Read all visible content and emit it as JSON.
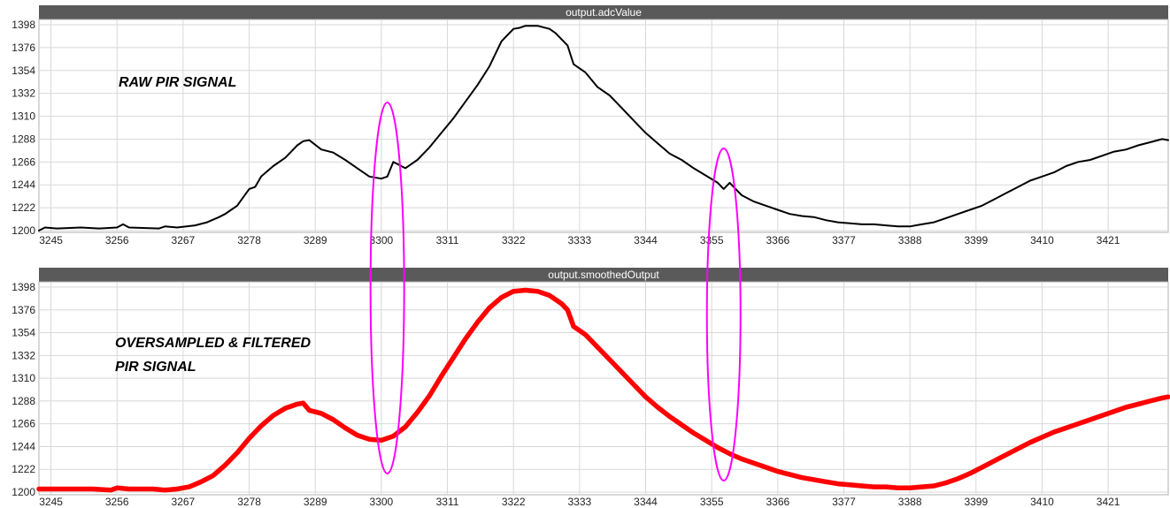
{
  "chart_data": [
    {
      "type": "line",
      "title": "output.adcValue",
      "annotation": "RAW PIR SIGNAL",
      "xlim": [
        3243,
        3431
      ],
      "ylim": [
        1200,
        1398
      ],
      "x_ticks": [
        3245,
        3256,
        3267,
        3278,
        3289,
        3300,
        3311,
        3322,
        3333,
        3344,
        3355,
        3366,
        3377,
        3388,
        3399,
        3410,
        3421
      ],
      "y_ticks": [
        1200,
        1222,
        1244,
        1266,
        1288,
        1310,
        1332,
        1354,
        1376,
        1398
      ],
      "grid": true,
      "series": [
        {
          "color": "#000000",
          "x": [
            3243,
            3244,
            3246,
            3250,
            3253,
            3256,
            3257,
            3258,
            3263,
            3264,
            3266,
            3269,
            3271,
            3273,
            3274,
            3275,
            3276,
            3277,
            3278,
            3279,
            3280,
            3282,
            3284,
            3285,
            3286,
            3287,
            3288,
            3290,
            3292,
            3294,
            3296,
            3298,
            3300,
            3301,
            3302,
            3304,
            3306,
            3308,
            3310,
            3312,
            3314,
            3316,
            3318,
            3319,
            3320,
            3322,
            3323,
            3324,
            3326,
            3328,
            3329,
            3331,
            3332,
            3334,
            3336,
            3338,
            3340,
            3342,
            3344,
            3346,
            3348,
            3350,
            3352,
            3354,
            3356,
            3357,
            3358,
            3360,
            3362,
            3364,
            3366,
            3368,
            3370,
            3372,
            3374,
            3376,
            3378,
            3380,
            3382,
            3384,
            3386,
            3388,
            3390,
            3392,
            3394,
            3396,
            3398,
            3400,
            3402,
            3404,
            3406,
            3408,
            3410,
            3412,
            3414,
            3416,
            3418,
            3420,
            3422,
            3424,
            3426,
            3428,
            3430,
            3431
          ],
          "y": [
            1200,
            1203,
            1202,
            1203,
            1202,
            1203,
            1206,
            1203,
            1202,
            1204,
            1203,
            1205,
            1208,
            1213,
            1216,
            1220,
            1224,
            1232,
            1240,
            1242,
            1252,
            1262,
            1270,
            1276,
            1282,
            1286,
            1287,
            1278,
            1275,
            1268,
            1260,
            1252,
            1250,
            1252,
            1266,
            1260,
            1268,
            1280,
            1294,
            1308,
            1324,
            1340,
            1358,
            1370,
            1382,
            1394,
            1395,
            1397,
            1397,
            1394,
            1390,
            1378,
            1360,
            1352,
            1338,
            1330,
            1318,
            1306,
            1294,
            1284,
            1274,
            1268,
            1260,
            1253,
            1246,
            1240,
            1246,
            1234,
            1228,
            1224,
            1220,
            1216,
            1214,
            1213,
            1210,
            1208,
            1207,
            1206,
            1206,
            1205,
            1204,
            1204,
            1206,
            1208,
            1212,
            1216,
            1220,
            1224,
            1230,
            1236,
            1242,
            1248,
            1252,
            1256,
            1262,
            1266,
            1268,
            1272,
            1276,
            1278,
            1282,
            1285,
            1288,
            1287
          ]
        }
      ]
    },
    {
      "type": "line",
      "title": "output.smoothedOutput",
      "annotation_lines": [
        "OVERSAMPLED & FILTERED",
        "PIR SIGNAL"
      ],
      "xlim": [
        3243,
        3431
      ],
      "ylim": [
        1200,
        1398
      ],
      "x_ticks": [
        3245,
        3256,
        3267,
        3278,
        3289,
        3300,
        3311,
        3322,
        3333,
        3344,
        3355,
        3366,
        3377,
        3388,
        3399,
        3410,
        3421
      ],
      "y_ticks": [
        1200,
        1222,
        1244,
        1266,
        1288,
        1310,
        1332,
        1354,
        1376,
        1398
      ],
      "grid": true,
      "series": [
        {
          "color": "#ff0000",
          "x": [
            3243,
            3246,
            3249,
            3252,
            3255,
            3256,
            3258,
            3262,
            3264,
            3266,
            3268,
            3270,
            3272,
            3274,
            3276,
            3278,
            3280,
            3282,
            3284,
            3286,
            3287,
            3288,
            3290,
            3292,
            3294,
            3296,
            3298,
            3300,
            3302,
            3304,
            3306,
            3308,
            3310,
            3312,
            3314,
            3316,
            3318,
            3320,
            3322,
            3324,
            3326,
            3328,
            3330,
            3331,
            3332,
            3334,
            3336,
            3338,
            3340,
            3342,
            3344,
            3346,
            3348,
            3350,
            3352,
            3354,
            3356,
            3358,
            3360,
            3362,
            3364,
            3366,
            3368,
            3370,
            3372,
            3374,
            3376,
            3378,
            3380,
            3382,
            3384,
            3386,
            3388,
            3390,
            3392,
            3394,
            3396,
            3398,
            3400,
            3402,
            3404,
            3406,
            3408,
            3410,
            3412,
            3414,
            3416,
            3418,
            3420,
            3422,
            3424,
            3426,
            3428,
            3430,
            3431
          ],
          "y": [
            1203,
            1203,
            1203,
            1203,
            1202,
            1204,
            1203,
            1203,
            1202,
            1203,
            1205,
            1210,
            1216,
            1226,
            1238,
            1252,
            1264,
            1274,
            1281,
            1285,
            1286,
            1279,
            1276,
            1270,
            1262,
            1255,
            1251,
            1250,
            1254,
            1263,
            1277,
            1293,
            1312,
            1330,
            1348,
            1364,
            1378,
            1388,
            1394,
            1395,
            1394,
            1390,
            1382,
            1376,
            1360,
            1352,
            1340,
            1328,
            1316,
            1304,
            1292,
            1282,
            1273,
            1265,
            1257,
            1250,
            1243,
            1237,
            1232,
            1228,
            1224,
            1220,
            1217,
            1214,
            1212,
            1210,
            1208,
            1207,
            1206,
            1205,
            1205,
            1204,
            1204,
            1205,
            1206,
            1209,
            1213,
            1218,
            1224,
            1230,
            1236,
            1242,
            1248,
            1253,
            1258,
            1262,
            1266,
            1270,
            1274,
            1278,
            1282,
            1285,
            1288,
            1291,
            1292
          ]
        }
      ]
    }
  ],
  "highlights": {
    "color": "#ff00ff",
    "x_values": [
      3301,
      3357
    ]
  }
}
